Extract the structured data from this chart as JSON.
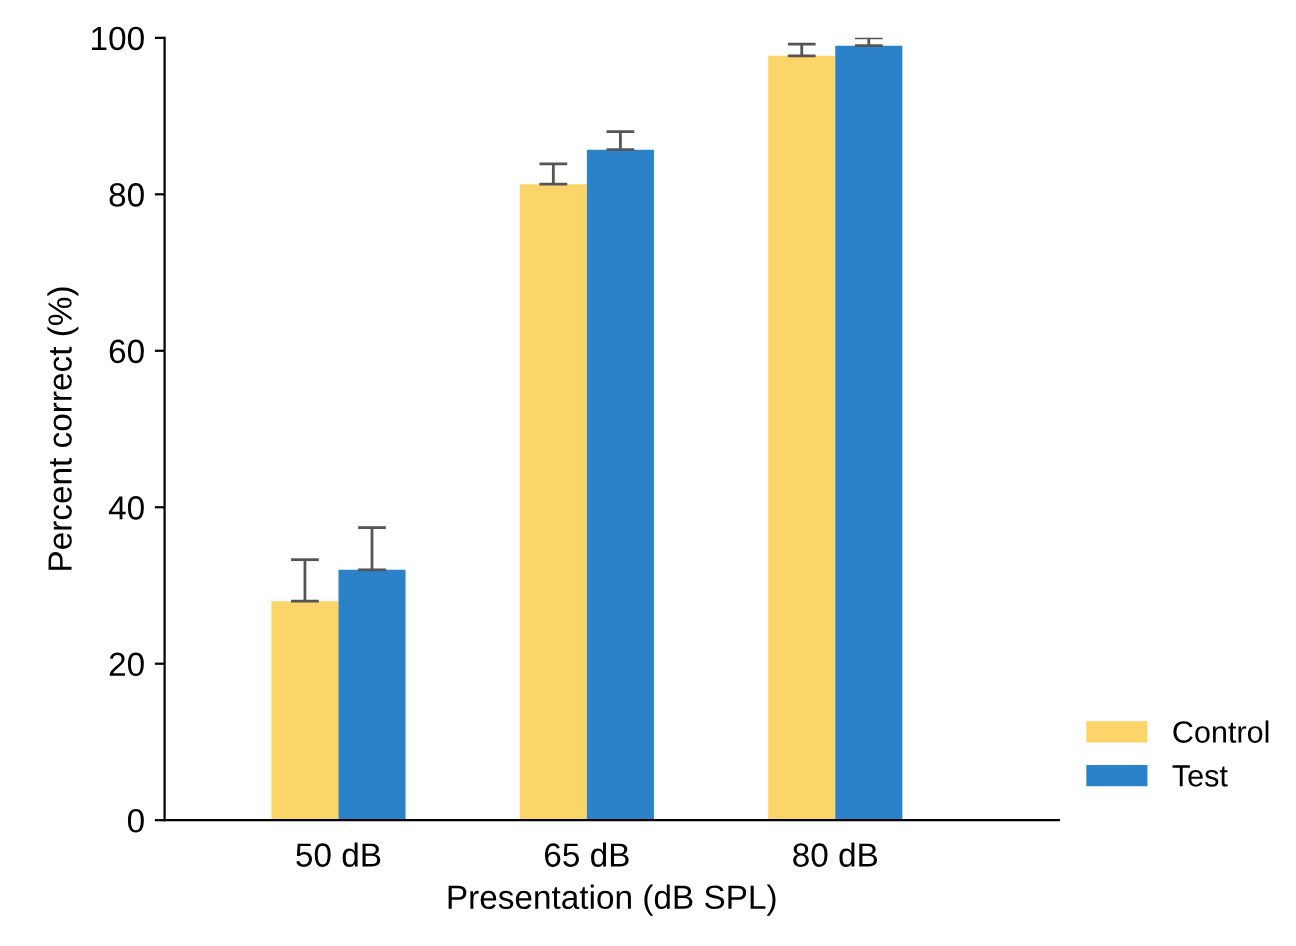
{
  "chart_data": {
    "type": "bar",
    "xlabel": "Presentation (dB SPL)",
    "ylabel": "Percent correct (%)",
    "categories": [
      "50 dB",
      "65 dB",
      "80 dB"
    ],
    "series": [
      {
        "name": "Control",
        "color": "#fcd56a",
        "values": [
          28,
          81.3,
          97.7
        ],
        "errors": [
          [
            28,
            33.3
          ],
          [
            81.3,
            83.9
          ],
          [
            97.7,
            99.2
          ]
        ]
      },
      {
        "name": "Test",
        "color": "#2b82c9",
        "values": [
          32,
          85.7,
          99
        ],
        "errors": [
          [
            32,
            37.4
          ],
          [
            85.7,
            88
          ],
          [
            99,
            100
          ]
        ]
      }
    ],
    "ylim": [
      0,
      100
    ],
    "yticks": [
      0,
      20,
      40,
      60,
      80,
      100
    ],
    "grid": false,
    "legend": "bottom right"
  }
}
